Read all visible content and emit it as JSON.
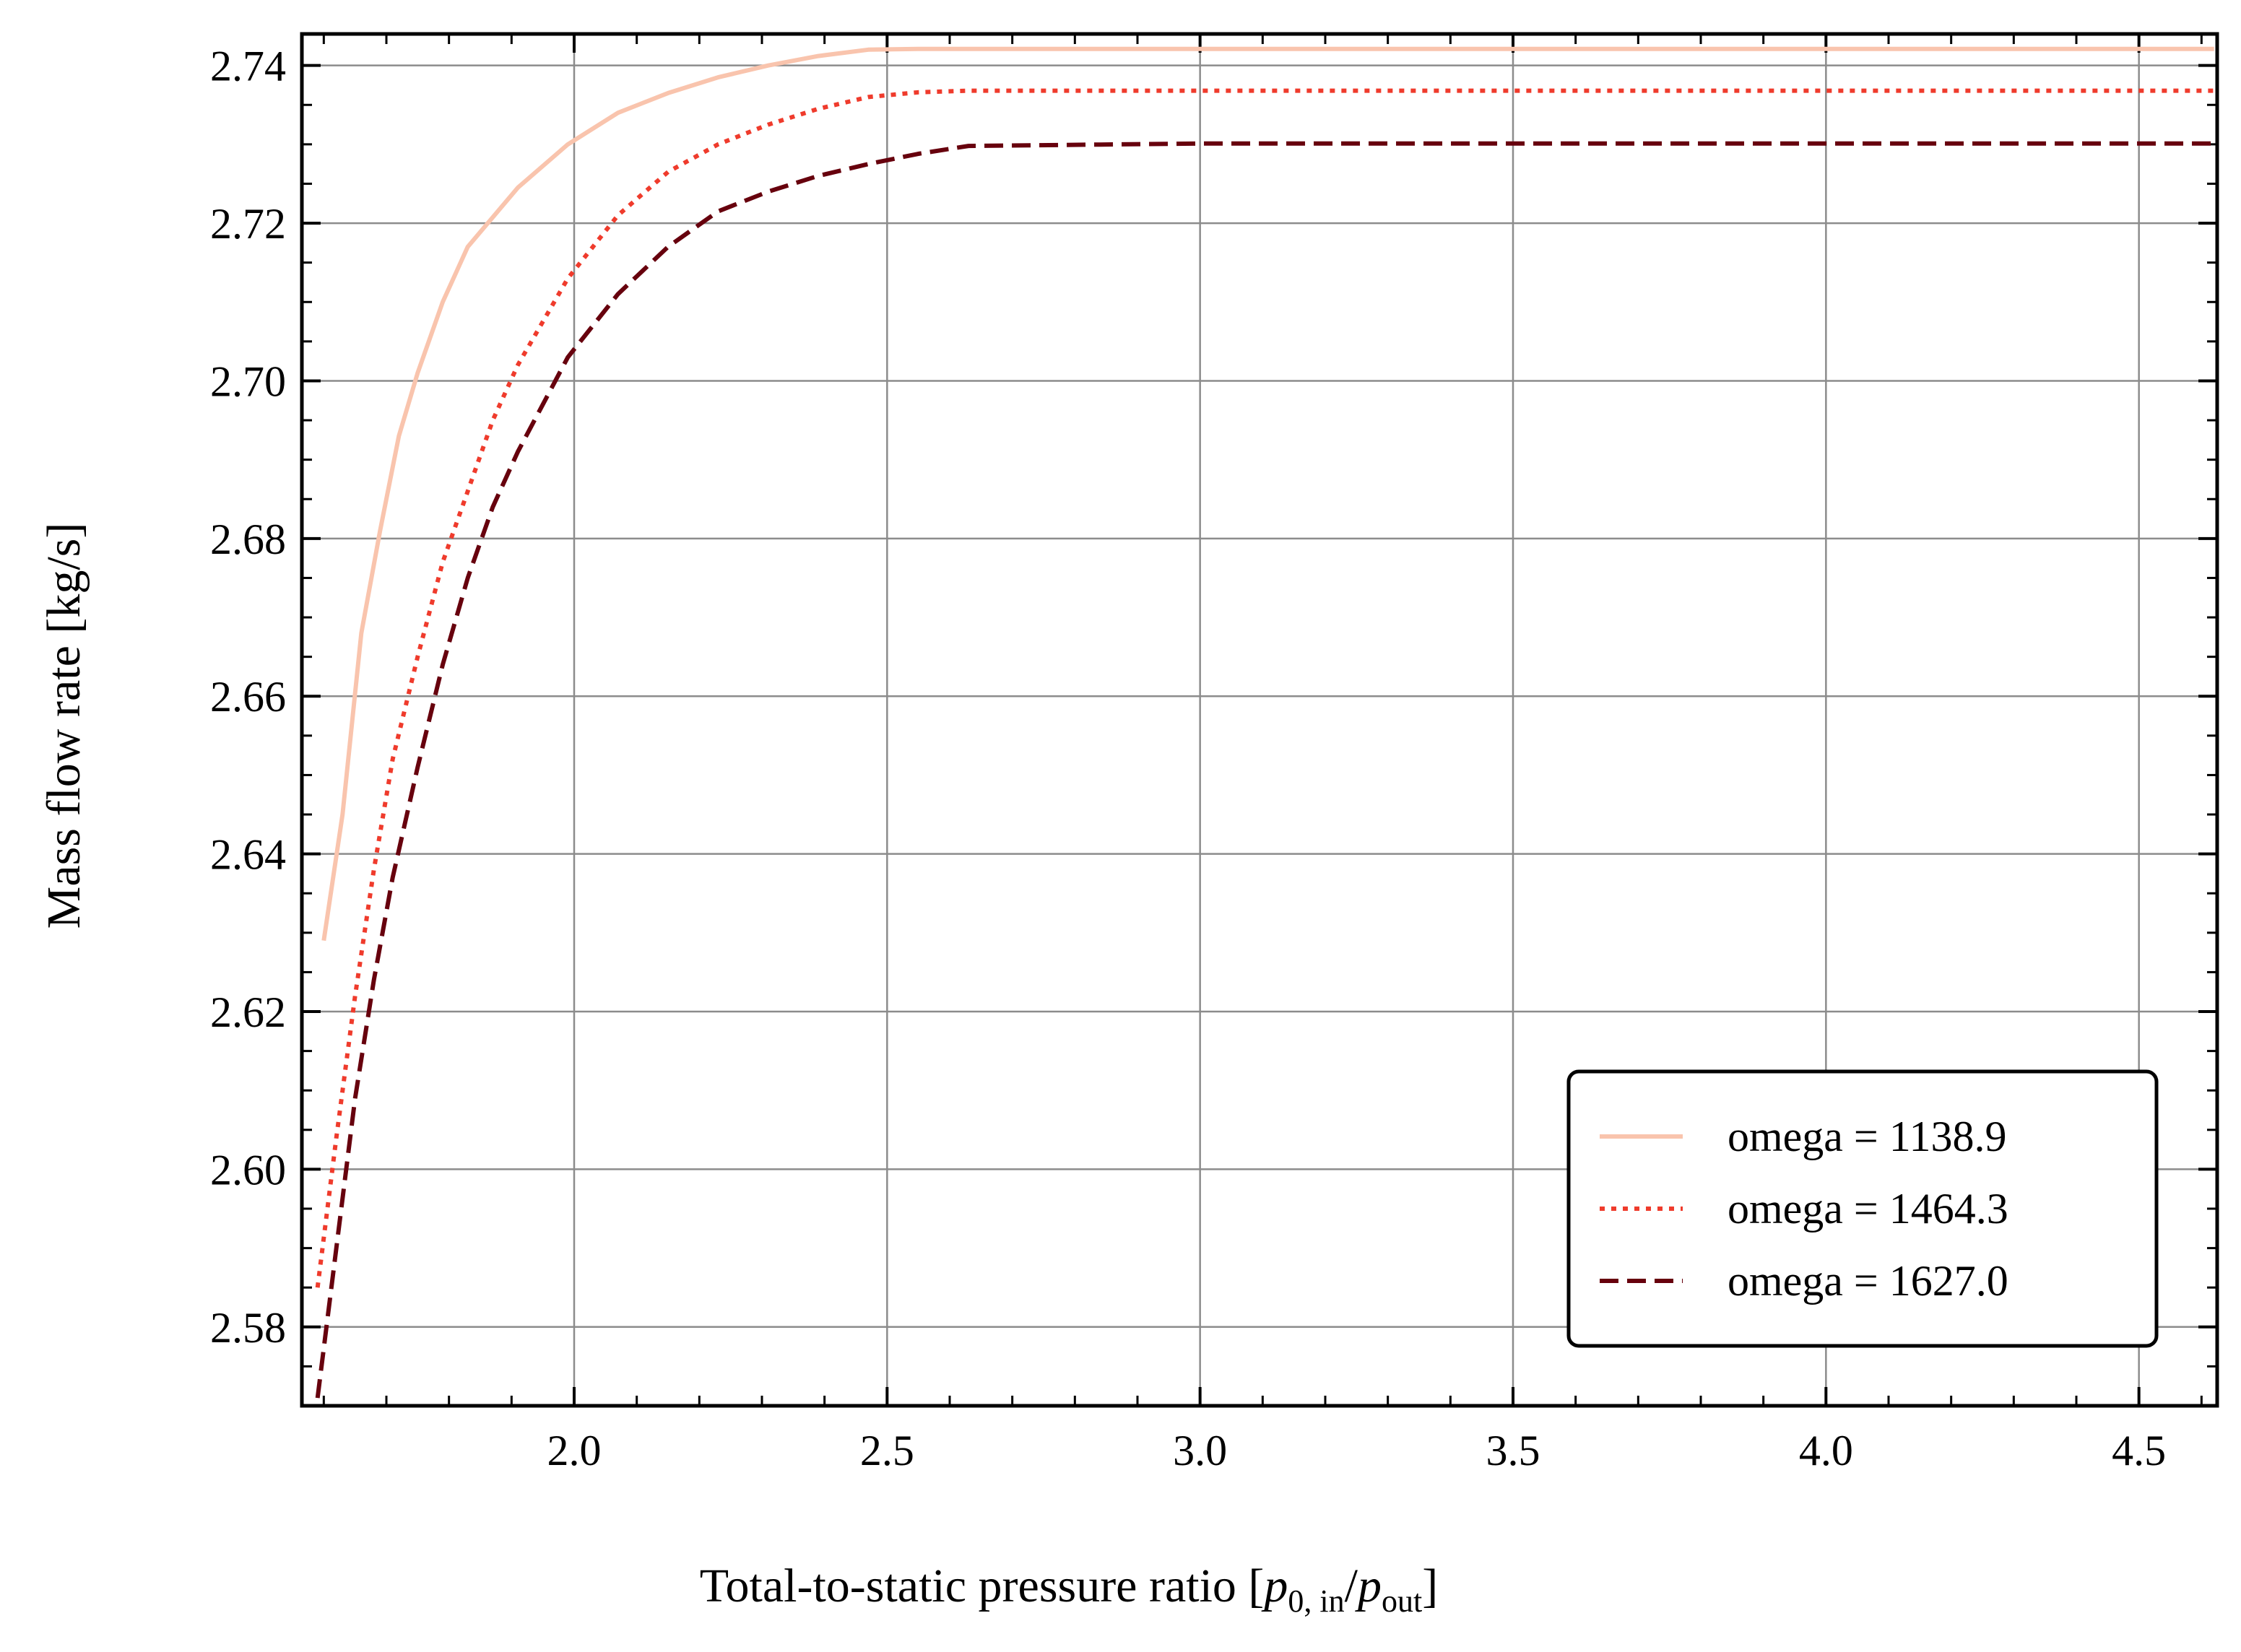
{
  "chart_data": {
    "type": "line",
    "title": "",
    "xlabel": {
      "main": "Total-to-static pressure ratio [",
      "p1": "p",
      "p1_sub": "0, in",
      "slash": "/",
      "p2": "p",
      "p2_sub": "out",
      "close": "]"
    },
    "ylabel": "Mass flow rate [kg/s]",
    "xlim": [
      1.565,
      4.625
    ],
    "ylim": [
      2.57,
      2.744
    ],
    "xticks": [
      "2.0",
      "2.5",
      "3.0",
      "3.5",
      "4.0",
      "4.5"
    ],
    "yticks": [
      "2.58",
      "2.60",
      "2.62",
      "2.64",
      "2.66",
      "2.68",
      "2.70",
      "2.72",
      "2.74"
    ],
    "grid": true,
    "legend_position": "lower-right",
    "series": [
      {
        "name": "omega = 1138.9",
        "color": "#f9c4ad",
        "dash": "solid",
        "x": [
          1.6,
          1.63,
          1.66,
          1.69,
          1.72,
          1.75,
          1.79,
          1.83,
          1.91,
          1.99,
          2.07,
          2.15,
          2.23,
          2.31,
          2.39,
          2.47,
          2.55,
          2.63,
          3.0,
          3.5,
          4.0,
          4.62
        ],
        "y": [
          2.629,
          2.645,
          2.668,
          2.681,
          2.693,
          2.701,
          2.71,
          2.717,
          2.7245,
          2.73,
          2.734,
          2.7365,
          2.7385,
          2.74,
          2.7412,
          2.742,
          2.7421,
          2.7421,
          2.7421,
          2.7421,
          2.7421,
          2.7421
        ]
      },
      {
        "name": "omega = 1464.3",
        "color": "#ef3b2c",
        "dash": "dotted",
        "x": [
          1.59,
          1.62,
          1.65,
          1.68,
          1.71,
          1.75,
          1.79,
          1.83,
          1.87,
          1.91,
          1.99,
          2.07,
          2.15,
          2.23,
          2.31,
          2.39,
          2.47,
          2.55,
          2.63,
          3.0,
          3.5,
          4.0,
          4.62
        ],
        "y": [
          2.585,
          2.604,
          2.622,
          2.638,
          2.652,
          2.665,
          2.677,
          2.686,
          2.695,
          2.702,
          2.713,
          2.721,
          2.7265,
          2.73,
          2.7325,
          2.7345,
          2.736,
          2.7366,
          2.7368,
          2.7368,
          2.7368,
          2.7368,
          2.7368
        ]
      },
      {
        "name": "omega = 1627.0",
        "color": "#67000d",
        "dash": "dashed",
        "x": [
          1.59,
          1.62,
          1.65,
          1.68,
          1.71,
          1.75,
          1.79,
          1.83,
          1.87,
          1.91,
          1.99,
          2.07,
          2.15,
          2.23,
          2.31,
          2.39,
          2.47,
          2.55,
          2.63,
          3.0,
          3.5,
          4.0,
          4.62
        ],
        "y": [
          2.571,
          2.59,
          2.609,
          2.624,
          2.637,
          2.651,
          2.664,
          2.675,
          2.684,
          2.691,
          2.703,
          2.711,
          2.717,
          2.7215,
          2.724,
          2.726,
          2.7275,
          2.7288,
          2.7298,
          2.7301,
          2.7301,
          2.7301,
          2.7301
        ]
      }
    ]
  }
}
